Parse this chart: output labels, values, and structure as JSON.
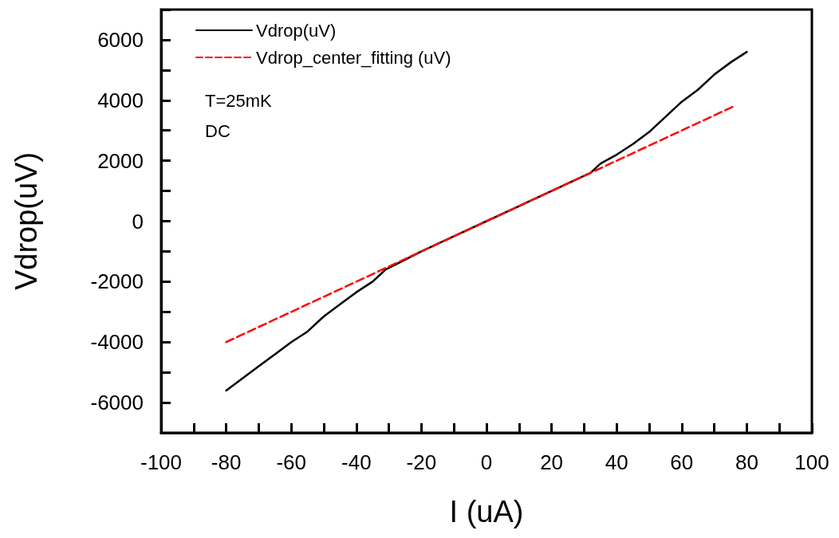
{
  "chart_data": {
    "type": "line",
    "xlabel": "I (uA)",
    "ylabel": "Vdrop(uV)",
    "annotations": [
      "T=25mK",
      "DC"
    ],
    "xlim": [
      -100,
      100
    ],
    "ylim": [
      -7000,
      7000
    ],
    "xticks": [
      -100,
      {
        "value": -90,
        "label": null
      },
      -80,
      {
        "value": -70,
        "label": null
      },
      -60,
      {
        "value": -50,
        "label": null
      },
      -40,
      {
        "value": -30,
        "label": null
      },
      -20,
      {
        "value": -10,
        "label": null
      },
      0,
      {
        "value": 10,
        "label": null
      },
      20,
      {
        "value": 30,
        "label": null
      },
      40,
      {
        "value": 50,
        "label": null
      },
      60,
      {
        "value": 70,
        "label": null
      },
      80,
      {
        "value": 90,
        "label": null
      },
      100
    ],
    "yticks": [
      {
        "value": -7000,
        "label": null
      },
      -6000,
      {
        "value": -5000,
        "label": null
      },
      -4000,
      {
        "value": -3000,
        "label": null
      },
      -2000,
      {
        "value": -1000,
        "label": null
      },
      0,
      {
        "value": 1000,
        "label": null
      },
      2000,
      {
        "value": 3000,
        "label": null
      },
      4000,
      {
        "value": 5000,
        "label": null
      },
      6000,
      {
        "value": 7000,
        "label": null
      }
    ],
    "grid": false,
    "legend": "top left",
    "marker": "none",
    "series": [
      {
        "name": "Vdrop(uV)",
        "color": "#000000",
        "line_style": "solid",
        "x": [
          -80,
          -75,
          -70,
          -65,
          -60,
          -55,
          -50,
          -45,
          -40,
          -35,
          -33,
          -31,
          -20,
          -10,
          0,
          10,
          20,
          30,
          32,
          35,
          40,
          45,
          50,
          55,
          60,
          65,
          70,
          75,
          80
        ],
        "values": [
          -5600,
          -5200,
          -4800,
          -4400,
          -4000,
          -3650,
          -3150,
          -2750,
          -2350,
          -2000,
          -1800,
          -1600,
          -1000,
          -500,
          0,
          500,
          1000,
          1500,
          1600,
          1900,
          2200,
          2550,
          2950,
          3450,
          3950,
          4350,
          4850,
          5250,
          5600
        ]
      },
      {
        "name": "Vdrop_center_fitting (uV)",
        "color": "#ff0000",
        "line_style": "dashed",
        "x": [
          -80,
          76
        ],
        "values": [
          -4000,
          3800
        ]
      }
    ]
  }
}
